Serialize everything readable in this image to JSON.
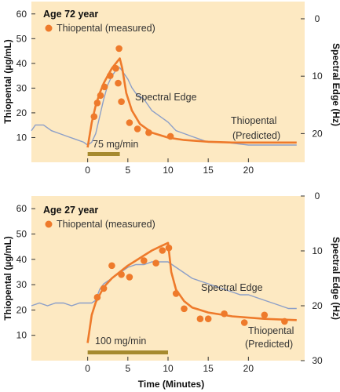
{
  "colors": {
    "background": "#fde9c2",
    "measured": "#ee7a2b",
    "predicted": "#ee7a2b",
    "spectral_edge": "#8c9fc8",
    "infusion_bar": "#a68a2e"
  },
  "chart_data": [
    {
      "type": "line",
      "title": "Age 72 year",
      "xlabel": "",
      "ylabel": "Thiopental (µg/mL)",
      "y2label": "Spectral Edge (Hz)",
      "xlim": [
        -7,
        27
      ],
      "ylim": [
        0,
        65
      ],
      "y2lim": [
        25,
        -3
      ],
      "xticks": [
        0,
        5,
        10,
        15,
        20
      ],
      "yticks": [
        10,
        20,
        30,
        40,
        50,
        60
      ],
      "y2ticks": [
        0,
        10,
        20
      ],
      "series": [
        {
          "name": "Thiopental (measured)",
          "kind": "scatter",
          "x": [
            0.8,
            1.2,
            1.6,
            2.1,
            2.8,
            3.5,
            3.8,
            3.9,
            4.2,
            5.2,
            6.2,
            7.6,
            10.3
          ],
          "y": [
            18.5,
            24,
            27,
            30.5,
            35,
            38,
            32,
            46,
            24.5,
            16,
            13.5,
            12,
            10.5
          ]
        },
        {
          "name": "Thiopental (Predicted)",
          "kind": "line",
          "x": [
            0,
            0.5,
            1,
            1.5,
            2,
            2.5,
            3,
            3.5,
            4,
            4.3,
            4.8,
            5.5,
            6.5,
            8,
            10,
            12,
            15,
            18,
            22,
            26
          ],
          "y": [
            6,
            16,
            23,
            28,
            32,
            35,
            38,
            40,
            42,
            38,
            28,
            21,
            15.5,
            12,
            10,
            9,
            8.3,
            8,
            8,
            8
          ]
        },
        {
          "name": "Spectral Edge",
          "kind": "line",
          "axis": "right",
          "x": [
            -7,
            -6.5,
            -5.5,
            -4.5,
            -3.5,
            -2.5,
            -1.5,
            -0.5,
            0,
            0.5,
            1,
            1.5,
            2,
            2.5,
            3,
            3.5,
            4,
            4.5,
            5,
            5.5,
            6,
            7,
            8,
            9,
            10,
            11,
            12,
            13,
            14,
            15,
            17,
            20,
            24,
            26
          ],
          "y": [
            19.5,
            18.5,
            18.5,
            19.5,
            20,
            20.5,
            21,
            21.5,
            22,
            21.5,
            20,
            17,
            14,
            11.5,
            10,
            9,
            8.5,
            9.5,
            10.5,
            12,
            13,
            14,
            16,
            17,
            18,
            19.5,
            20,
            20.5,
            21,
            21.5,
            21.5,
            22,
            22,
            22
          ]
        }
      ],
      "annotations": {
        "spectral_edge": "Spectral Edge",
        "predicted_line1": "Thiopental",
        "predicted_line2": "(Predicted)",
        "infusion": "75 mg/min"
      },
      "infusion": {
        "start": 0,
        "end": 4
      }
    },
    {
      "type": "line",
      "title": "Age 27 year",
      "xlabel": "Time (Minutes)",
      "ylabel": "Thiopental (µg/mL)",
      "y2label": "Spectral Edge (Hz)",
      "xlim": [
        -7,
        27
      ],
      "ylim": [
        0,
        65
      ],
      "y2lim": [
        30,
        0
      ],
      "xticks": [
        0,
        5,
        10,
        15,
        20
      ],
      "yticks": [
        10,
        20,
        30,
        40,
        50,
        60
      ],
      "y2ticks": [
        0,
        10,
        20,
        30
      ],
      "series": [
        {
          "name": "Thiopental (measured)",
          "kind": "scatter",
          "x": [
            1.2,
            2,
            3,
            4.2,
            5.2,
            7,
            8.5,
            9.3,
            10.1,
            11,
            12,
            14,
            15,
            17,
            19.5,
            22,
            24.5
          ],
          "y": [
            25,
            28.5,
            37.5,
            34,
            33,
            39.5,
            38.5,
            43.5,
            44.5,
            26.5,
            20.5,
            16.5,
            16.5,
            18.5,
            15,
            18,
            15.5
          ]
        },
        {
          "name": "Thiopental (Predicted)",
          "kind": "line",
          "x": [
            0,
            0.5,
            1,
            2,
            3,
            4,
            5,
            6,
            7,
            8,
            9,
            10,
            10.4,
            11,
            12,
            13,
            15,
            18,
            22,
            26
          ],
          "y": [
            7,
            18,
            23,
            29,
            32.5,
            35,
            37.5,
            39.5,
            41.5,
            43.5,
            45,
            46.5,
            35,
            28,
            23.5,
            21,
            19,
            17.5,
            16.5,
            16
          ]
        },
        {
          "name": "Spectral Edge",
          "kind": "line",
          "axis": "right",
          "x": [
            -7,
            -6,
            -5,
            -4,
            -3,
            -2,
            -1,
            0,
            0.5,
            1,
            1.5,
            2,
            3,
            4,
            5,
            6,
            7,
            8,
            9,
            10,
            11,
            12,
            13,
            14,
            15,
            16,
            17,
            18,
            19,
            20,
            21,
            22,
            23,
            24,
            25,
            26
          ],
          "y": [
            20,
            19.5,
            20,
            19.5,
            19.5,
            20,
            19.5,
            19.5,
            19.5,
            19,
            17,
            16,
            15,
            14,
            13,
            12.5,
            12.5,
            12,
            12,
            12,
            13,
            14,
            15,
            15.5,
            16,
            16.5,
            17,
            17.5,
            18,
            18,
            18.5,
            19,
            19.5,
            20,
            20.5,
            20.5
          ]
        }
      ],
      "annotations": {
        "spectral_edge": "Spectral Edge",
        "predicted_line1": "Thiopental",
        "predicted_line2": "(Predicted)",
        "infusion": "100 mg/min"
      },
      "infusion": {
        "start": 0,
        "end": 10
      }
    }
  ]
}
